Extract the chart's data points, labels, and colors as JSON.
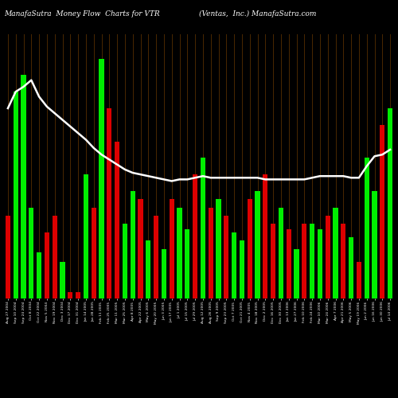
{
  "title_left": "ManafaSutra  Money Flow  Charts for VTR",
  "title_right": "(Ventas,  Inc.) ManafaSutra.com",
  "bg_color": "#000000",
  "bar_color_green": "#00ee00",
  "bar_color_red": "#dd0000",
  "grid_color": "#4a2800",
  "line_color": "#ffffff",
  "bar_colors": [
    "r",
    "g",
    "g",
    "g",
    "g",
    "r",
    "r",
    "g",
    "r",
    "r",
    "g",
    "r",
    "g",
    "r",
    "r",
    "g",
    "g",
    "r",
    "g",
    "r",
    "g",
    "r",
    "g",
    "g",
    "r",
    "g",
    "r",
    "g",
    "r",
    "g",
    "g",
    "r",
    "g",
    "r",
    "r",
    "g",
    "r",
    "g",
    "r",
    "g",
    "g",
    "r",
    "g",
    "r",
    "g",
    "r",
    "g",
    "g",
    "r",
    "g"
  ],
  "bar_heights": [
    50,
    125,
    135,
    55,
    28,
    40,
    50,
    22,
    4,
    4,
    75,
    55,
    145,
    115,
    95,
    45,
    65,
    60,
    35,
    50,
    30,
    60,
    55,
    42,
    75,
    85,
    55,
    60,
    50,
    40,
    35,
    60,
    65,
    75,
    45,
    55,
    42,
    30,
    45,
    45,
    42,
    50,
    55,
    45,
    37,
    22,
    85,
    65,
    105,
    115
  ],
  "line_values": [
    115,
    125,
    128,
    132,
    122,
    116,
    112,
    108,
    104,
    100,
    96,
    91,
    87,
    84,
    81,
    78,
    76,
    75,
    74,
    73,
    72,
    71,
    72,
    72,
    73,
    74,
    73,
    73,
    73,
    73,
    73,
    73,
    73,
    72,
    72,
    72,
    72,
    72,
    72,
    73,
    74,
    74,
    74,
    74,
    73,
    73,
    80,
    86,
    87,
    90
  ],
  "xlabels": [
    "Aug 27 2004",
    "Sep 10 2004",
    "Sep 24 2004",
    "Oct 8 2004",
    "Oct 22 2004",
    "Nov 5 2004",
    "Nov 19 2004",
    "Dec 3 2004",
    "Dec 17 2004",
    "Dec 31 2004",
    "Jan 14 2005",
    "Jan 28 2005",
    "Feb 11 2005",
    "Feb 25 2005",
    "Mar 11 2005",
    "Mar 25 2005",
    "Apr 8 2005",
    "Apr 22 2005",
    "May 6 2005",
    "May 20 2005",
    "Jun 3 2005",
    "Jun 17 2005",
    "Jul 1 2005",
    "Jul 15 2005",
    "Jul 29 2005",
    "Aug 12 2005",
    "Aug 26 2005",
    "Sep 9 2005",
    "Sep 23 2005",
    "Oct 7 2005",
    "Oct 21 2005",
    "Nov 4 2005",
    "Nov 18 2005",
    "Dec 2 2005",
    "Dec 16 2005",
    "Dec 30 2005",
    "Jan 13 2006",
    "Jan 27 2006",
    "Feb 10 2006",
    "Feb 24 2006",
    "Mar 10 2006",
    "Mar 24 2006",
    "Apr 7 2006",
    "Apr 21 2006",
    "May 5 2006",
    "May 19 2006",
    "Jun 2 2006",
    "Jun 16 2006",
    "Jun 30 2006",
    "Jul 14 2006"
  ],
  "figsize": [
    5.0,
    5.0
  ],
  "dpi": 100,
  "ylim_max": 160,
  "title_fontsize": 6.5,
  "tick_fontsize": 3.2
}
